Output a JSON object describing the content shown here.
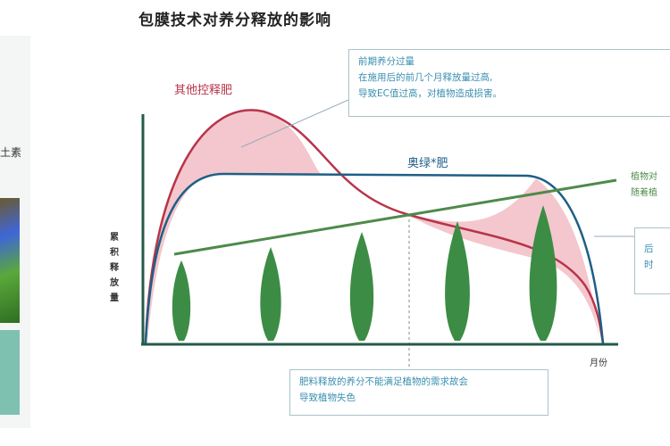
{
  "title": "包膜技术对养分释放的影响",
  "labels": {
    "other": "其他控释肥",
    "product": "奥绿*肥",
    "y_axis": "累积释放量",
    "x_axis": "月份",
    "left_cut": "土素"
  },
  "box_top": {
    "lines": [
      "前期养分过量",
      "在施用后的前几个月释放量过高,",
      "导致EC值过高，对植物造成损害。"
    ]
  },
  "box_bottom": {
    "lines": [
      "肥料释放的养分不能满足植物的需求故会",
      "导致植物失色"
    ]
  },
  "right_text": {
    "lines": [
      "植物对",
      "随着植"
    ]
  },
  "right_box": {
    "lines": [
      "后",
      "时"
    ]
  },
  "colors": {
    "other": "#b8344a",
    "product": "#1f5f86",
    "demand": "#4e8a4a",
    "fill": "#f0b9c0",
    "tree": "#3c8c46",
    "text_blue": "#3a8fb0"
  }
}
